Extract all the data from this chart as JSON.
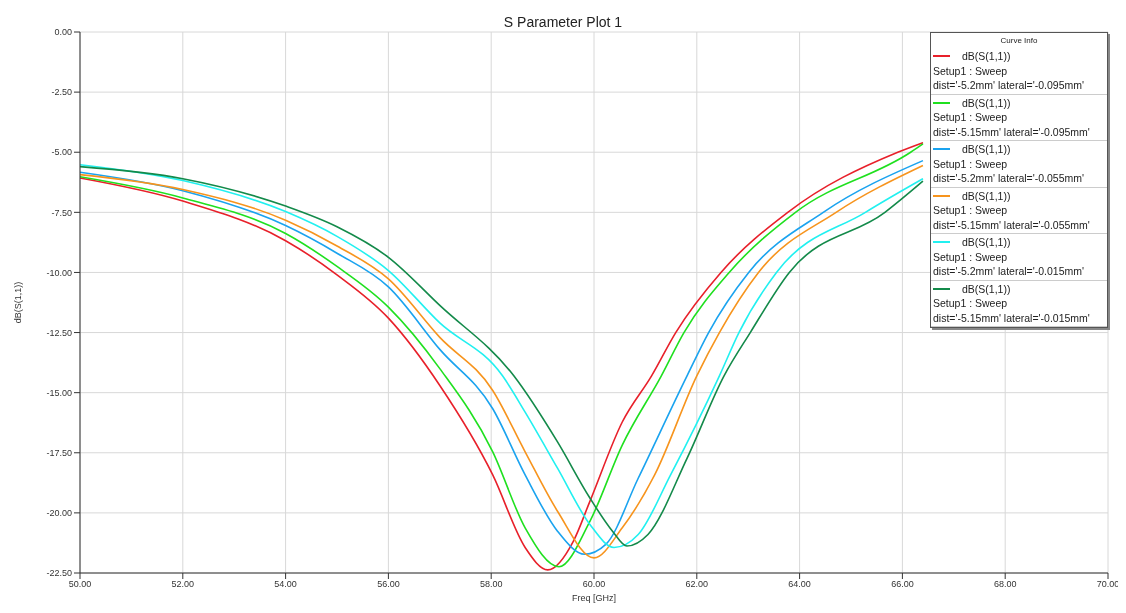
{
  "chart_data": {
    "type": "line",
    "title": "S Parameter Plot 1",
    "xlabel": "Freq [GHz]",
    "ylabel": "dB(S(1,1))",
    "legend_title": "Curve Info",
    "xlim": [
      50,
      70
    ],
    "xticks": [
      {
        "value": 50,
        "label": "50.00"
      },
      {
        "value": 52,
        "label": "52.00"
      },
      {
        "value": 54,
        "label": "54.00"
      },
      {
        "value": 56,
        "label": "56.00"
      },
      {
        "value": 58,
        "label": "58.00"
      },
      {
        "value": 60,
        "label": "60.00"
      },
      {
        "value": 62,
        "label": "62.00"
      },
      {
        "value": 64,
        "label": "64.00"
      },
      {
        "value": 66,
        "label": "66.00"
      },
      {
        "value": 68,
        "label": "68.00"
      },
      {
        "value": 70,
        "label": "70.00"
      }
    ],
    "ylim": [
      -22.5,
      0
    ],
    "yticks": [
      {
        "value": 0,
        "label": "0.00"
      },
      {
        "value": -2.5,
        "label": "-2.50"
      },
      {
        "value": -5,
        "label": "-5.00"
      },
      {
        "value": -7.5,
        "label": "-7.50"
      },
      {
        "value": -10,
        "label": "-10.00"
      },
      {
        "value": -12.5,
        "label": "-12.50"
      },
      {
        "value": -15,
        "label": "-15.00"
      },
      {
        "value": -17.5,
        "label": "-17.50"
      },
      {
        "value": -20,
        "label": "-20.00"
      },
      {
        "value": -22.5,
        "label": "-22.50"
      }
    ],
    "grid": true,
    "legend": "top right",
    "marker": "none",
    "line_style": "solid",
    "series": [
      {
        "name": "dB(S(1,1))\nSetup1 : Sweep\ndist='-5.2mm' lateral='-0.095mm'",
        "color": "#e8202a",
        "x": [
          50,
          52,
          54,
          55,
          56,
          57,
          58.03,
          58.66,
          59.1,
          59.6,
          59.92,
          60.55,
          61.12,
          61.59,
          62.47,
          63.77,
          65.91,
          66.4
        ],
        "values": [
          -6.07,
          -7.03,
          -8.68,
          -10.1,
          -11.9,
          -14.7,
          -18.42,
          -21.44,
          -22.37,
          -21.17,
          -19.52,
          -16.22,
          -14.3,
          -12.5,
          -10,
          -7.5,
          -5,
          -4.6
        ]
      },
      {
        "name": "dB(S(1,1))\nSetup1 : Sweep\ndist='-5.15mm' lateral='-0.095mm'",
        "color": "#1fe01f",
        "x": [
          50,
          52,
          54,
          55,
          56,
          57,
          58.03,
          58.66,
          59.32,
          59.92,
          60.55,
          61.31,
          61.75,
          62.63,
          63.92,
          66.16,
          66.4
        ],
        "values": [
          -6.02,
          -6.9,
          -8.38,
          -9.75,
          -11.44,
          -14.0,
          -17.46,
          -20.62,
          -22.24,
          -20.35,
          -17.18,
          -14.3,
          -12.5,
          -10,
          -7.5,
          -5,
          -4.65
        ]
      },
      {
        "name": "dB(S(1,1))\nSetup1 : Sweep\ndist='-5.2mm' lateral='-0.055mm'",
        "color": "#1aa3ef",
        "x": [
          50,
          52,
          54,
          55,
          56,
          57,
          58.03,
          58.66,
          59.29,
          59.82,
          60.23,
          60.86,
          61.81,
          62.23,
          63.01,
          64.46,
          66.4
        ],
        "values": [
          -5.83,
          -6.6,
          -8.05,
          -9.2,
          -10.6,
          -13.2,
          -15.67,
          -18.42,
          -20.76,
          -21.72,
          -21.31,
          -18.56,
          -14.3,
          -12.5,
          -10,
          -7.5,
          -5.35
        ]
      },
      {
        "name": "dB(S(1,1))\nSetup1 : Sweep\ndist='-5.15mm' lateral='-0.055mm'",
        "color": "#f7941d",
        "x": [
          50,
          52,
          54,
          55,
          56,
          57,
          58.03,
          58.66,
          59.29,
          60.0,
          60.55,
          61.18,
          62.0,
          62.44,
          63.2,
          64.71,
          66.4
        ],
        "values": [
          -5.93,
          -6.55,
          -7.83,
          -8.9,
          -10.27,
          -12.7,
          -14.91,
          -17.46,
          -19.93,
          -21.87,
          -20.62,
          -18.42,
          -14.3,
          -12.5,
          -10,
          -7.5,
          -5.55
        ]
      },
      {
        "name": "dB(S(1,1))\nSetup1 : Sweep\ndist='-5.2mm' lateral='-0.015mm'",
        "color": "#21f0f0",
        "x": [
          50,
          52,
          54,
          55,
          56,
          57,
          58.22,
          58.66,
          59.29,
          59.92,
          60.39,
          60.86,
          61.49,
          62.44,
          62.82,
          63.55,
          65.28,
          66.4
        ],
        "values": [
          -5.52,
          -6.18,
          -7.47,
          -8.5,
          -9.92,
          -12.1,
          -14.3,
          -15.81,
          -18.14,
          -20.48,
          -21.44,
          -20.9,
          -18.42,
          -14.3,
          -12.5,
          -10,
          -7.5,
          -6.1
        ]
      },
      {
        "name": "dB(S(1,1))\nSetup1 : Sweep\ndist='-5.15mm' lateral='-0.015mm'",
        "color": "#138a4a",
        "x": [
          50,
          52,
          54,
          55,
          56,
          57,
          58.44,
          59.29,
          59.92,
          60.36,
          60.64,
          61.05,
          61.81,
          62.53,
          63.04,
          63.8,
          65.66,
          66.4
        ],
        "values": [
          -5.6,
          -6.1,
          -7.24,
          -8.1,
          -9.37,
          -11.37,
          -14.3,
          -17.05,
          -19.38,
          -20.76,
          -21.38,
          -20.9,
          -17.73,
          -14.3,
          -12.5,
          -10,
          -7.5,
          -6.2
        ]
      }
    ]
  }
}
